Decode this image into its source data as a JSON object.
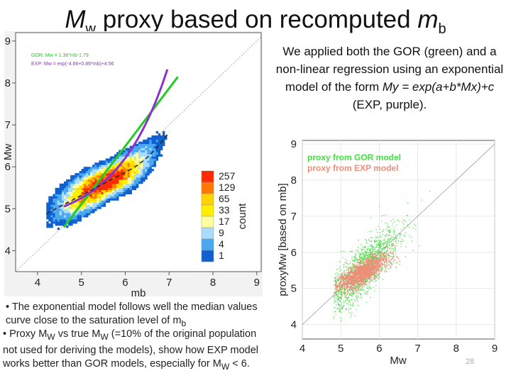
{
  "title": {
    "main": "M",
    "main_sub": "w",
    "rest": " proxy based on recomputed ",
    "m": "m",
    "m_sub": "b"
  },
  "description": {
    "text1": "We applied both the GOR (green) and a non-linear regression using an exponential model of the form ",
    "formula": "My = exp(a+b*Mx)+c",
    "text2": " (EXP, purple)."
  },
  "bullets": {
    "b1": "• The exponential model follows well the median values curve close to the saturation level of m",
    "b1_sub": "b",
    "b2a": "• Proxy M",
    "b2_sub1": "W",
    "b2b": " vs true M",
    "b2_sub2": "W",
    "b2c": " (=10% of the original population not used for deriving the models), show how EXP model works better than GOR models, especially for M",
    "b2_sub3": "W",
    "b2d": " < 6."
  },
  "page_number": "28",
  "colors": {
    "gor": "#22cc22",
    "exp": "#8833cc",
    "diag": "#999999",
    "proxy_exp": "#f08c78",
    "proxy_gor": "#44dd44"
  },
  "chart_data": [
    {
      "type": "heatmap",
      "xlabel": "mb",
      "ylabel": "Mw",
      "xlim": [
        3.5,
        9.1
      ],
      "ylim": [
        3.5,
        9.2
      ],
      "xticks": [
        4,
        5,
        6,
        7,
        8,
        9
      ],
      "yticks": [
        4,
        5,
        6,
        7,
        8,
        9
      ],
      "grid": true,
      "legend": {
        "position": "top-left",
        "entries": [
          {
            "label": "GOR: Mw = 1.38*mb-1.79",
            "color": "#22cc22"
          },
          {
            "label": "EXP: Mw = exp(-4.66+0.86*mb)+4.56",
            "color": "#8833cc"
          }
        ]
      },
      "gor": {
        "slope": 1.38,
        "intercept": -1.79
      },
      "exp": {
        "a": -4.66,
        "b": 0.86,
        "c": 4.56
      },
      "colorbar": {
        "label": "count",
        "ticks": [
          "257",
          "129",
          "65",
          "33",
          "17",
          "9",
          "4",
          "1"
        ],
        "colors": [
          "#ff2a00",
          "#ff7800",
          "#ffd200",
          "#fff000",
          "#ffffa0",
          "#a8dcff",
          "#4aa8f0",
          "#1060d0"
        ]
      },
      "density": {
        "center": [
          5.5,
          5.3
        ],
        "spread": [
          0.55,
          0.45
        ],
        "counts_max": 257
      }
    },
    {
      "type": "scatter",
      "xlabel": "Mw",
      "ylabel": "proxyMw [based on mb]",
      "xlim": [
        4,
        9
      ],
      "ylim": [
        3.6,
        9.1
      ],
      "xticks": [
        4,
        5,
        6,
        7,
        8,
        9
      ],
      "yticks": [
        4,
        5,
        6,
        7,
        8,
        9
      ],
      "grid": true,
      "legend": {
        "position": "top-left",
        "entries": [
          {
            "label": "proxy from GOR model",
            "color": "#44dd44"
          },
          {
            "label": "proxy from EXP model",
            "color": "#f08c78"
          }
        ]
      }
    }
  ]
}
